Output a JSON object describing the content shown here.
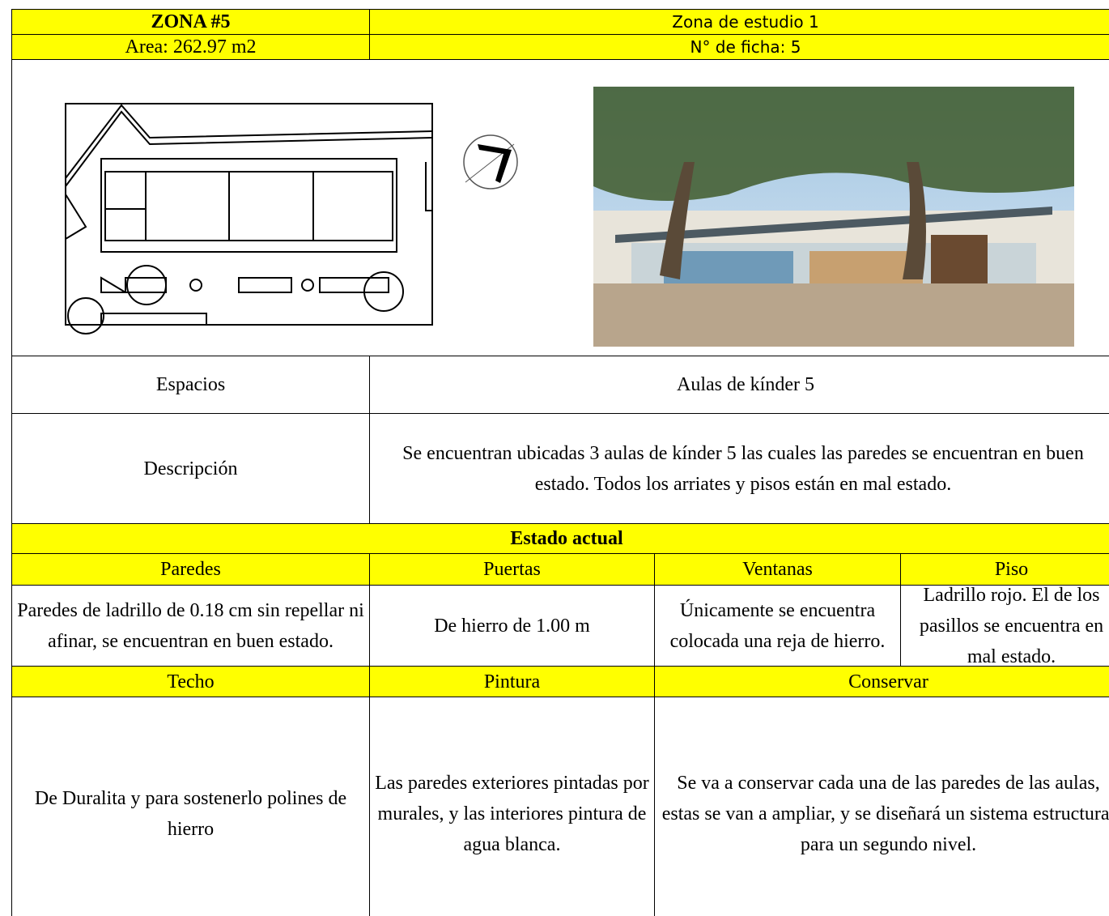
{
  "header": {
    "zone": "ZONA #5",
    "study_zone": "Zona de estudio 1",
    "area": "Area: 262.97 m2",
    "ficha": "N° de ficha: 5"
  },
  "table": {
    "spaces_label": "Espacios",
    "spaces_value": "Aulas de kínder 5",
    "description_label": "Descripción",
    "description_value": "Se encuentran ubicadas 3 aulas de kínder 5 las cuales las paredes se encuentran en buen estado. Todos los arriates y pisos están en mal estado.",
    "section_title": "Estado  actual",
    "headers_1": [
      "Paredes",
      "Puertas",
      "Ventanas",
      "Piso"
    ],
    "values_1": [
      "Paredes de ladrillo de 0.18 cm sin repellar ni afinar, se encuentran en buen estado.",
      "De hierro de 1.00 m",
      "Únicamente se encuentra colocada una reja de hierro.",
      "Ladrillo rojo. El de los pasillos se encuentra en mal estado."
    ],
    "headers_2": [
      "Techo",
      "Pintura",
      "Conservar"
    ],
    "values_2": [
      "De Duralita y para sostenerlo polines de hierro",
      "Las paredes exteriores pintadas por murales, y las interiores pintura de agua blanca.",
      "Se va a conservar cada una de las paredes de las aulas, estas se van a ampliar, y se diseñará un sistema estructural para un segundo nivel."
    ]
  }
}
